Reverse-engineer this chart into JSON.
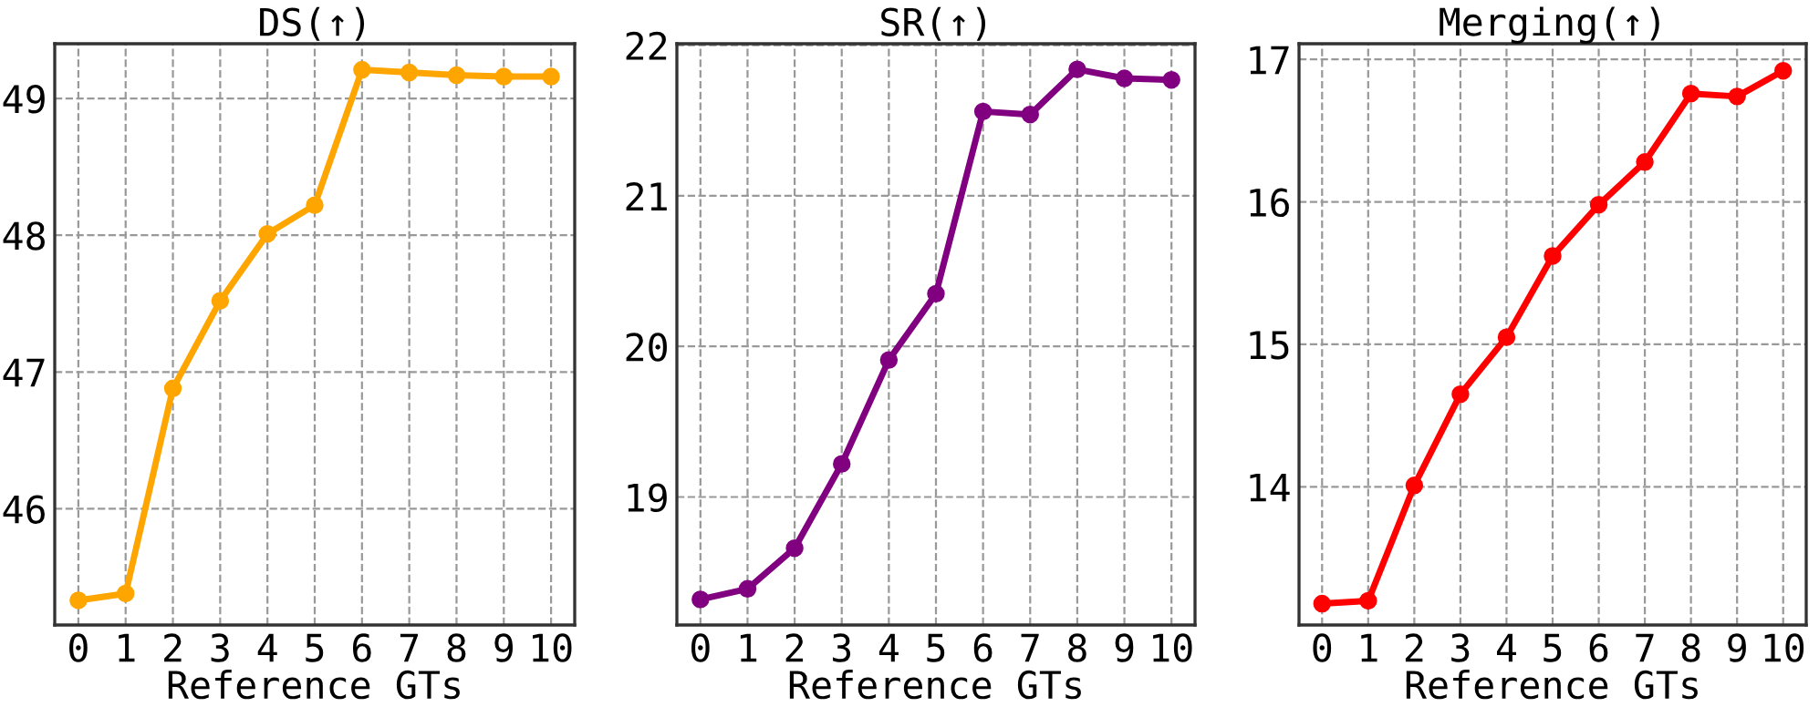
{
  "chart_data": [
    {
      "type": "line",
      "title": "DS(↑)",
      "xlabel": "Reference GTs",
      "x": [
        0,
        1,
        2,
        3,
        4,
        5,
        6,
        7,
        8,
        9,
        10
      ],
      "xlim": [
        -0.5,
        10.5
      ],
      "xticks": [
        0,
        1,
        2,
        3,
        4,
        5,
        6,
        7,
        8,
        9,
        10
      ],
      "ylim": [
        45.15,
        49.4
      ],
      "yticks": [
        46,
        47,
        48,
        49
      ],
      "grid": true,
      "marker": "circle",
      "line_style": "solid",
      "series": [
        {
          "color": "#ffa500",
          "values": [
            45.33,
            45.38,
            46.88,
            47.52,
            48.01,
            48.22,
            49.21,
            49.19,
            49.17,
            49.16,
            49.16
          ]
        }
      ]
    },
    {
      "type": "line",
      "title": "SR(↑)",
      "xlabel": "Reference GTs",
      "x": [
        0,
        1,
        2,
        3,
        4,
        5,
        6,
        7,
        8,
        9,
        10
      ],
      "xlim": [
        -0.5,
        10.5
      ],
      "xticks": [
        0,
        1,
        2,
        3,
        4,
        5,
        6,
        7,
        8,
        9,
        10
      ],
      "ylim": [
        18.15,
        22.01
      ],
      "yticks": [
        19,
        20,
        21,
        22
      ],
      "grid": true,
      "marker": "circle",
      "line_style": "solid",
      "series": [
        {
          "color": "#800080",
          "values": [
            18.32,
            18.39,
            18.66,
            19.22,
            19.91,
            20.35,
            21.56,
            21.54,
            21.84,
            21.78,
            21.77
          ]
        }
      ]
    },
    {
      "type": "line",
      "title": "Merging(↑)",
      "xlabel": "Reference GTs",
      "x": [
        0,
        1,
        2,
        3,
        4,
        5,
        6,
        7,
        8,
        9,
        10
      ],
      "xlim": [
        -0.5,
        10.5
      ],
      "xticks": [
        0,
        1,
        2,
        3,
        4,
        5,
        6,
        7,
        8,
        9,
        10
      ],
      "ylim": [
        13.03,
        17.11
      ],
      "yticks": [
        14,
        15,
        16,
        17
      ],
      "grid": true,
      "marker": "circle",
      "line_style": "solid",
      "series": [
        {
          "color": "#ff0000",
          "values": [
            13.18,
            13.2,
            14.01,
            14.65,
            15.05,
            15.62,
            15.98,
            16.28,
            16.76,
            16.74,
            16.92
          ]
        }
      ]
    }
  ]
}
